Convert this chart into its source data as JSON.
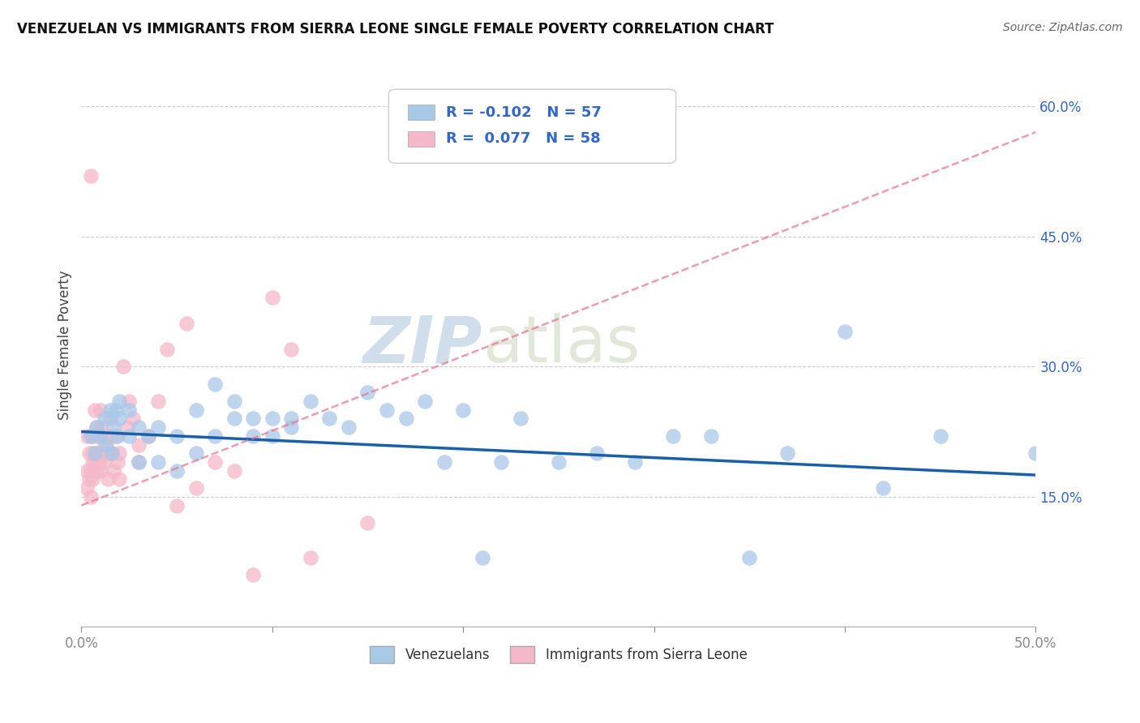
{
  "title": "VENEZUELAN VS IMMIGRANTS FROM SIERRA LEONE SINGLE FEMALE POVERTY CORRELATION CHART",
  "source": "Source: ZipAtlas.com",
  "ylabel": "Single Female Poverty",
  "xlim": [
    0,
    0.5
  ],
  "ylim": [
    0,
    0.65
  ],
  "xtick_positions": [
    0.0,
    0.1,
    0.2,
    0.3,
    0.4,
    0.5
  ],
  "xtick_labels_shown": {
    "0.0": "0.0%",
    "0.5": "50.0%"
  },
  "yticks_right": [
    0.15,
    0.3,
    0.45,
    0.6
  ],
  "ytick_labels_right": [
    "15.0%",
    "30.0%",
    "45.0%",
    "60.0%"
  ],
  "legend_label1": "Venezuelans",
  "legend_label2": "Immigrants from Sierra Leone",
  "blue_color": "#a8c8e8",
  "pink_color": "#f4b8c8",
  "trend_blue": "#1a5fa8",
  "trend_pink": "#e87090",
  "watermark_zip": "ZIP",
  "watermark_atlas": "atlas",
  "venezuelan_x": [
    0.005,
    0.007,
    0.008,
    0.01,
    0.012,
    0.013,
    0.015,
    0.016,
    0.017,
    0.018,
    0.019,
    0.02,
    0.02,
    0.025,
    0.025,
    0.03,
    0.03,
    0.035,
    0.04,
    0.04,
    0.05,
    0.05,
    0.06,
    0.06,
    0.07,
    0.07,
    0.08,
    0.08,
    0.09,
    0.09,
    0.1,
    0.1,
    0.11,
    0.11,
    0.12,
    0.13,
    0.14,
    0.15,
    0.16,
    0.17,
    0.18,
    0.19,
    0.2,
    0.21,
    0.22,
    0.23,
    0.25,
    0.27,
    0.29,
    0.31,
    0.33,
    0.35,
    0.37,
    0.4,
    0.42,
    0.45,
    0.5
  ],
  "venezuelan_y": [
    0.22,
    0.2,
    0.23,
    0.22,
    0.24,
    0.21,
    0.25,
    0.2,
    0.23,
    0.25,
    0.22,
    0.24,
    0.26,
    0.22,
    0.25,
    0.23,
    0.19,
    0.22,
    0.23,
    0.19,
    0.22,
    0.18,
    0.25,
    0.2,
    0.28,
    0.22,
    0.26,
    0.24,
    0.24,
    0.22,
    0.24,
    0.22,
    0.23,
    0.24,
    0.26,
    0.24,
    0.23,
    0.27,
    0.25,
    0.24,
    0.26,
    0.19,
    0.25,
    0.08,
    0.19,
    0.24,
    0.19,
    0.2,
    0.19,
    0.22,
    0.22,
    0.08,
    0.2,
    0.34,
    0.16,
    0.22,
    0.2
  ],
  "sierraleone_x": [
    0.003,
    0.003,
    0.003,
    0.004,
    0.004,
    0.005,
    0.005,
    0.005,
    0.005,
    0.006,
    0.006,
    0.006,
    0.007,
    0.007,
    0.007,
    0.008,
    0.008,
    0.008,
    0.009,
    0.009,
    0.01,
    0.01,
    0.01,
    0.01,
    0.01,
    0.012,
    0.012,
    0.013,
    0.013,
    0.014,
    0.015,
    0.015,
    0.015,
    0.016,
    0.017,
    0.018,
    0.019,
    0.02,
    0.02,
    0.022,
    0.024,
    0.025,
    0.027,
    0.03,
    0.03,
    0.035,
    0.04,
    0.045,
    0.05,
    0.055,
    0.06,
    0.07,
    0.08,
    0.09,
    0.1,
    0.11,
    0.12,
    0.15
  ],
  "sierraleone_y": [
    0.22,
    0.18,
    0.16,
    0.2,
    0.17,
    0.52,
    0.22,
    0.18,
    0.15,
    0.2,
    0.19,
    0.17,
    0.22,
    0.25,
    0.19,
    0.2,
    0.23,
    0.18,
    0.22,
    0.19,
    0.22,
    0.2,
    0.25,
    0.18,
    0.23,
    0.21,
    0.19,
    0.22,
    0.2,
    0.17,
    0.2,
    0.24,
    0.22,
    0.2,
    0.18,
    0.22,
    0.19,
    0.2,
    0.17,
    0.3,
    0.23,
    0.26,
    0.24,
    0.21,
    0.19,
    0.22,
    0.26,
    0.32,
    0.14,
    0.35,
    0.16,
    0.19,
    0.18,
    0.06,
    0.38,
    0.32,
    0.08,
    0.12
  ],
  "ven_trend_x0": 0.0,
  "ven_trend_y0": 0.225,
  "ven_trend_x1": 0.5,
  "ven_trend_y1": 0.175,
  "sl_trend_x0": 0.0,
  "sl_trend_y0": 0.14,
  "sl_trend_x1": 0.5,
  "sl_trend_y1": 0.57
}
